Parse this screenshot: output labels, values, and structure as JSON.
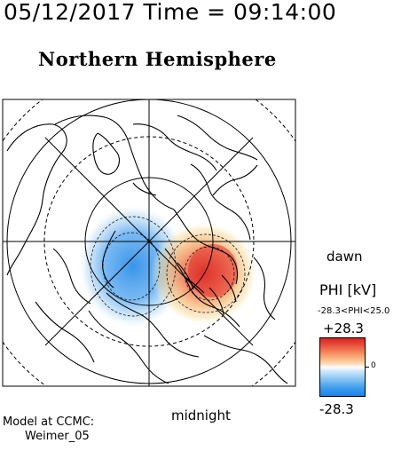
{
  "header": {
    "timestamp": "05/12/2017 Time = 09:14:00",
    "title": "Northern Hemisphere"
  },
  "map": {
    "projection": "polar stereographic, north pole centered, midnight at bottom, dawn at right",
    "features": [
      "coastlines",
      "latitude circles",
      "longitude meridians",
      "potential contours"
    ],
    "colors": {
      "positive": "#e0302a",
      "negative": "#2f8fe8",
      "neutral": "#ffffff"
    }
  },
  "labels": {
    "dawn": "dawn",
    "midnight": "midnight"
  },
  "colorbar": {
    "quantity_label": "PHI [kV]",
    "range_text": "-28.3<PHI<25.0",
    "max_label": "+28.3",
    "min_label": "-28.3",
    "zero_label": "0",
    "min": -28.3,
    "max": 28.3,
    "phi_min": -28.3,
    "phi_max": 25.0
  },
  "footer": {
    "model_line1": "Model at CCMC:",
    "model_line2": "Weimer_05"
  }
}
